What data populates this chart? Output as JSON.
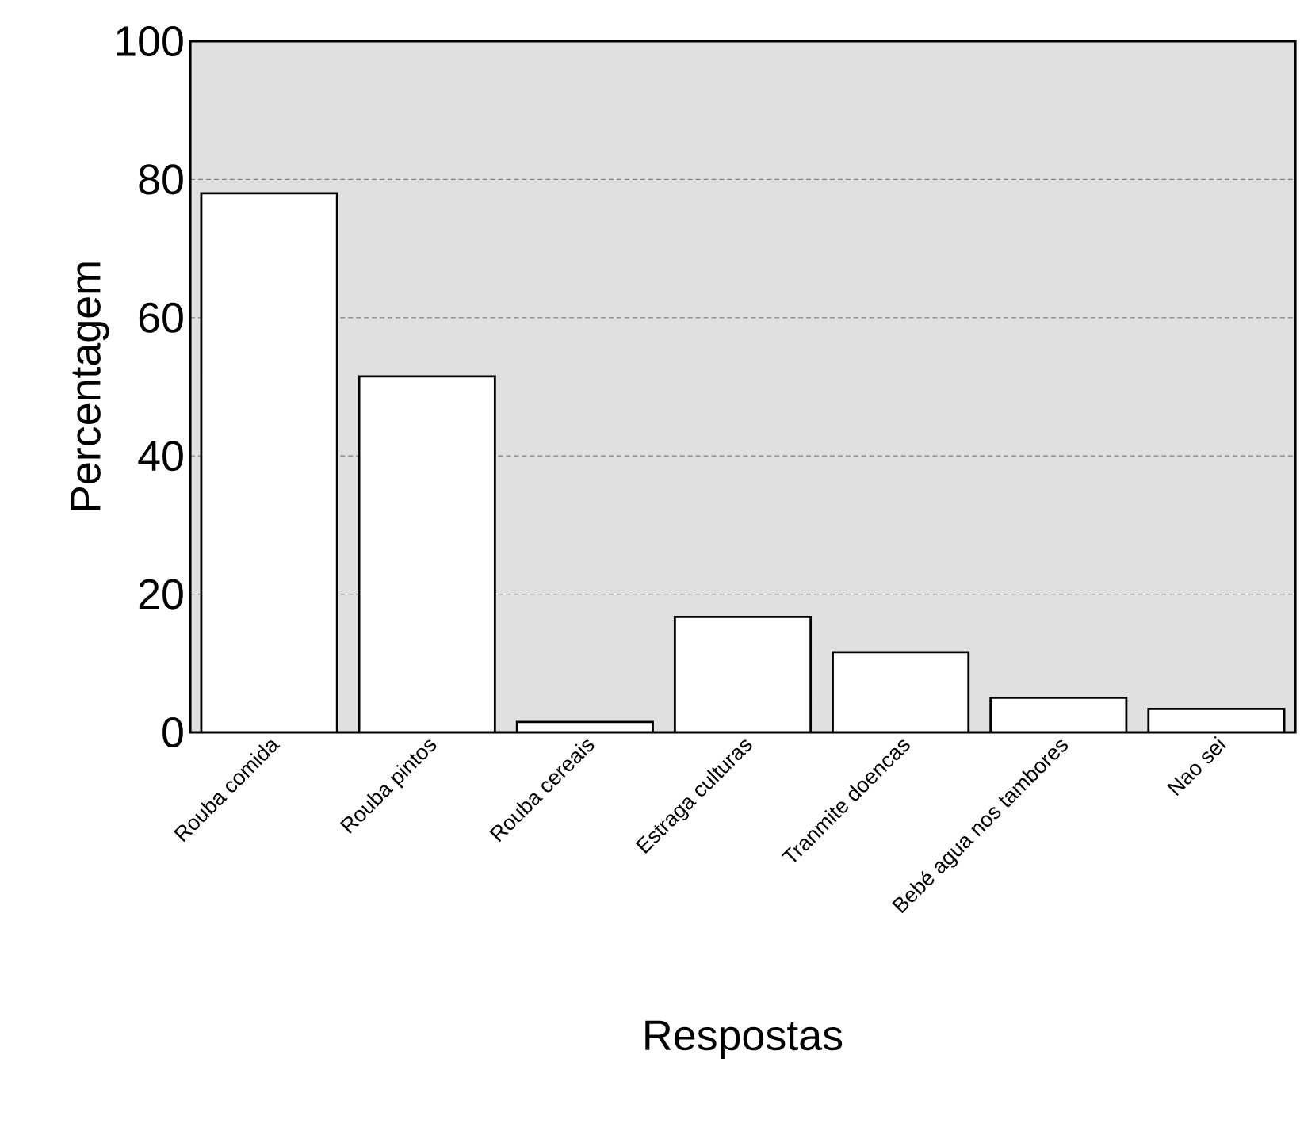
{
  "chart_data": {
    "type": "bar",
    "xlabel": "Respostas",
    "ylabel": "Percentagem",
    "categories": [
      "Rouba comida",
      "Rouba pintos",
      "Rouba cereais",
      "Estraga culturas",
      "Tranmite doencas",
      "Bebé agua nos tambores",
      "Nao sei"
    ],
    "values": [
      78,
      51.5,
      1.5,
      16.7,
      11.6,
      5,
      3.4
    ],
    "color": "#ffffff",
    "ylim": [
      0,
      100
    ],
    "yticks": [
      0,
      20,
      40,
      60,
      80,
      100
    ],
    "grid": "y"
  }
}
